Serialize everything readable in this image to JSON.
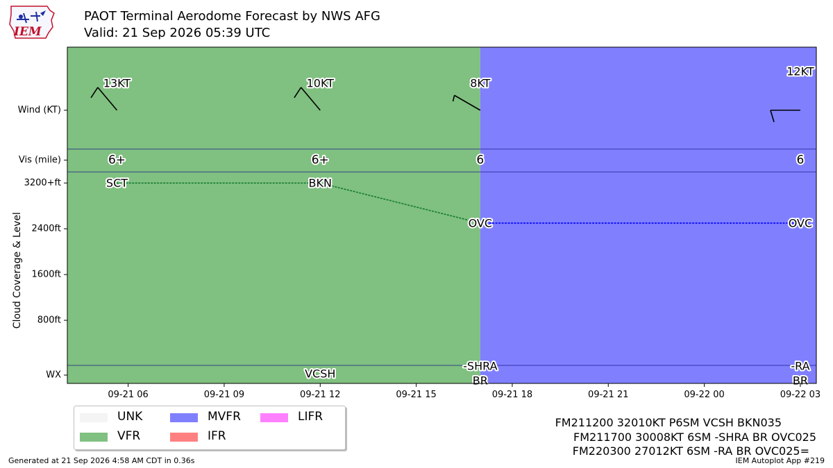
{
  "header": {
    "title": "PAOT Terminal Aerodome Forecast by NWS AFG",
    "subtitle": "Valid: 21 Sep 2026 05:39 UTC",
    "logo_text": "IEM"
  },
  "footer": {
    "generated": "Generated at 21 Sep 2026 4:58 AM CDT in 0.36s",
    "app": "IEM Autoplot App #219"
  },
  "taf_lines": [
    "FM211200 32010KT P6SM VCSH BKN035",
    "FM211700 30008KT 6SM -SHRA BR OVC025",
    "FM220300 27012KT 6SM -RA BR OVC025="
  ],
  "legend": [
    {
      "label": "UNK",
      "color": "#f4f4f4"
    },
    {
      "label": "MVFR",
      "color": "#8080ff"
    },
    {
      "label": "LIFR",
      "color": "#ff80ff"
    },
    {
      "label": "VFR",
      "color": "#80c080"
    },
    {
      "label": "IFR",
      "color": "#ff8080"
    }
  ],
  "chart_data": {
    "type": "line",
    "xlabel": "",
    "ylabel": "Cloud Coverage & Level",
    "x_ticks": [
      "09-21 06",
      "09-21 09",
      "09-21 12",
      "09-21 15",
      "09-21 18",
      "09-21 21",
      "09-22 00",
      "09-22 03"
    ],
    "x_tick_hours": [
      6,
      9,
      12,
      15,
      18,
      21,
      24,
      27
    ],
    "xlim_hours": [
      4.1,
      27.5
    ],
    "row_labels": {
      "wind": "Wind (KT)",
      "vis": "Vis (mile)",
      "wx": "WX"
    },
    "y_ticks": [
      {
        "label": "3200+ft",
        "value": 3200
      },
      {
        "label": "2400ft",
        "value": 2400
      },
      {
        "label": "1600ft",
        "value": 1600
      },
      {
        "label": "800ft",
        "value": 800
      }
    ],
    "ylim_ft": [
      -200,
      3400
    ],
    "category_bands": [
      {
        "start_hour": 4.1,
        "end_hour": 17.0,
        "category": "VFR",
        "color": "#80c080"
      },
      {
        "start_hour": 17.0,
        "end_hour": 27.5,
        "category": "MVFR",
        "color": "#8080ff"
      }
    ],
    "forecasts": [
      {
        "time": "09-21 05:39",
        "hour": 5.65,
        "wind_dir": 320,
        "wind_kt": 13,
        "wind_label": "13KT",
        "vis": "6+",
        "sky": "SCT",
        "level_ft": 3200,
        "wx": "",
        "color": "#1a7f37"
      },
      {
        "time": "09-21 12:00",
        "hour": 12.0,
        "wind_dir": 320,
        "wind_kt": 10,
        "wind_label": "10KT",
        "vis": "6+",
        "sky": "BKN",
        "level_ft": 3200,
        "wx": "VCSH",
        "color": "#1a7f37"
      },
      {
        "time": "09-21 17:00",
        "hour": 17.0,
        "wind_dir": 300,
        "wind_kt": 8,
        "wind_label": "8KT",
        "vis": "6",
        "sky": "OVC",
        "level_ft": 2500,
        "wx": "-SHRA\nBR",
        "color": "#0000ff"
      },
      {
        "time": "09-22 03:00",
        "hour": 27.0,
        "wind_dir": 270,
        "wind_kt": 12,
        "wind_label": "12KT",
        "vis": "6",
        "sky": "OVC",
        "level_ft": 2500,
        "wx": "-RA\nBR",
        "color": "#0000ff"
      }
    ]
  }
}
